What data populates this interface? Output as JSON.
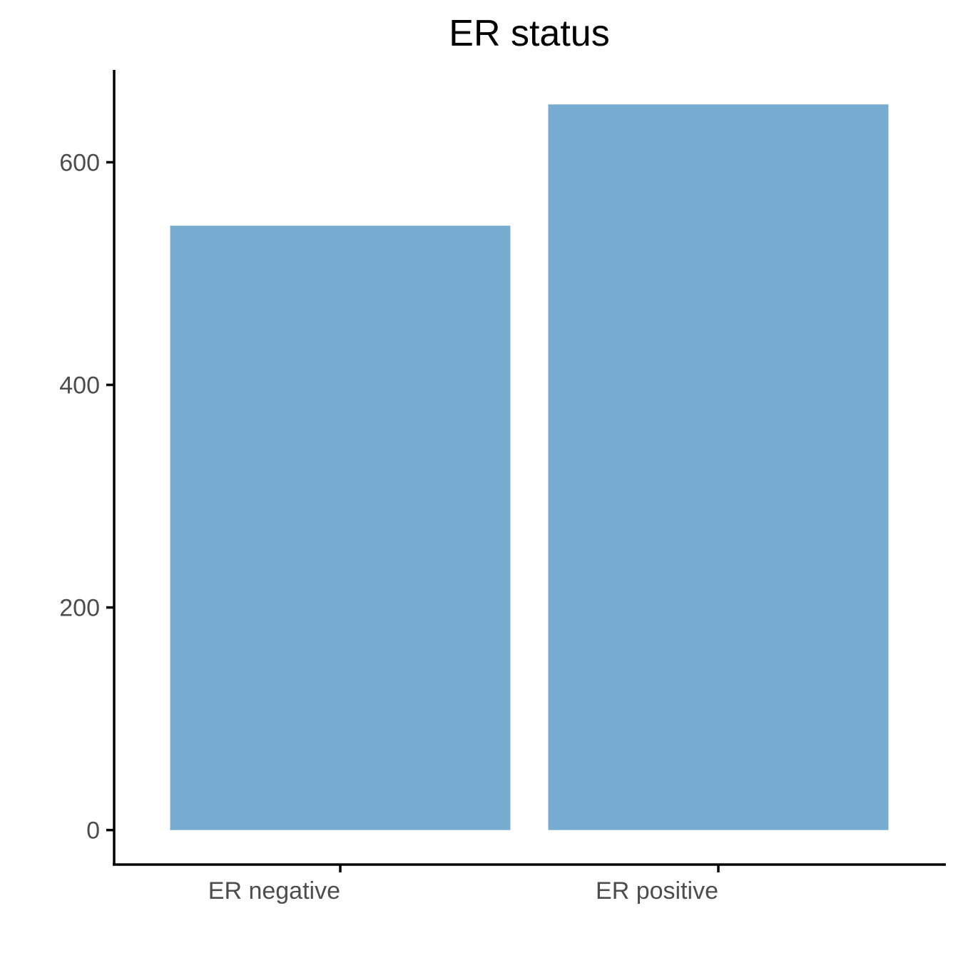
{
  "chart_data": {
    "type": "bar",
    "title": "ER status",
    "xlabel": "",
    "ylabel": "",
    "categories": [
      "ER negative",
      "ER positive"
    ],
    "values": [
      543,
      652
    ],
    "ylim": [
      -31,
      683
    ],
    "yticks": [
      0,
      200,
      400,
      600
    ],
    "bar_color": "#77ACD1",
    "grid": false,
    "legend": "none"
  }
}
